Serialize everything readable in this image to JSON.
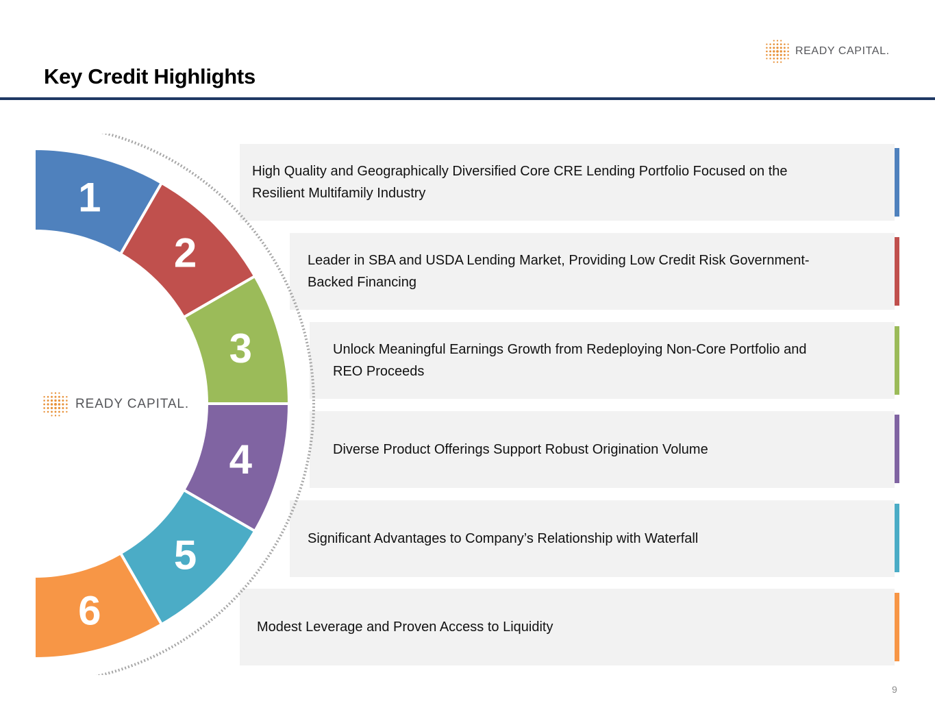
{
  "header": {
    "title": "Key Credit Highlights"
  },
  "brand": {
    "name": "READY CAPITAL.",
    "accent_color": "#e8923a",
    "rule_color": "#1f3864"
  },
  "highlights": [
    {
      "number": "1",
      "line1": "High Quality and Geographically Diversified Core CRE Lending Portfolio Focused on the",
      "line2": "Resilient Multifamily Industry",
      "color": "#4f81bd"
    },
    {
      "number": "2",
      "line1": "Leader in SBA and USDA Lending Market, Providing Low Credit Risk Government-",
      "line2": "Backed Financing",
      "color": "#c0504d"
    },
    {
      "number": "3",
      "line1": "Unlock Meaningful Earnings Growth from Redeploying Non-Core Portfolio and",
      "line2": "REO Proceeds",
      "color": "#9bbb59"
    },
    {
      "number": "4",
      "line1": "Diverse Product Offerings Support Robust Origination Volume",
      "line2": "",
      "color": "#8064a2"
    },
    {
      "number": "5",
      "line1": "Significant Advantages to Company’s Relationship with Waterfall",
      "line2": "",
      "color": "#4bacc6"
    },
    {
      "number": "6",
      "line1": "Modest Leverage and Proven Access to Liquidity",
      "line2": "",
      "color": "#f79646"
    }
  ],
  "footer": {
    "page_number": "9"
  }
}
